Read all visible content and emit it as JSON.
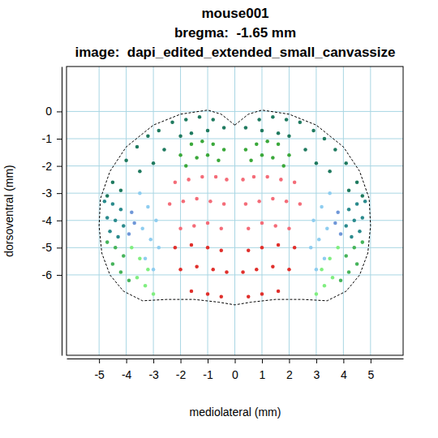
{
  "chart_data": {
    "type": "scatter",
    "title": [
      "mouse001",
      "bregma:  -1.65 mm",
      "image:  dapi_edited_extended_small_canvassize"
    ],
    "xlabel": "mediolateral (mm)",
    "ylabel": "dorsoventral (mm)",
    "xlim": [
      -6.2,
      6.2
    ],
    "ylim": [
      -8.95,
      1.65
    ],
    "xticks": [
      -5,
      -4,
      -3,
      -2,
      -1,
      0,
      1,
      2,
      3,
      4,
      5
    ],
    "yticks": [
      0,
      -1,
      -2,
      -3,
      -4,
      -5,
      -6
    ],
    "grid": true,
    "series": [
      {
        "type": "line",
        "color": "#000000",
        "line_style": "dashed",
        "x": [
          0,
          0.5,
          1.0,
          2.0,
          3.0,
          4.0,
          4.6,
          4.95,
          5.0,
          4.9,
          4.6,
          4.1,
          3.4,
          2.5,
          1.5,
          0.6,
          0,
          -0.6,
          -1.5,
          -2.5,
          -3.4,
          -4.1,
          -4.6,
          -4.9,
          -5.0,
          -4.95,
          -4.6,
          -4.0,
          -3.0,
          -2.0,
          -1.0,
          -0.5,
          0
        ],
        "values": [
          -0.5,
          -0.1,
          0.05,
          -0.1,
          -0.5,
          -1.3,
          -2.2,
          -3.2,
          -4.2,
          -5.2,
          -6.0,
          -6.6,
          -6.95,
          -6.9,
          -6.9,
          -7.0,
          -7.1,
          -7.0,
          -6.9,
          -6.9,
          -6.95,
          -6.6,
          -6.0,
          -5.2,
          -4.2,
          -3.2,
          -2.2,
          -1.3,
          -0.5,
          -0.1,
          0.05,
          -0.1,
          -0.5
        ]
      },
      {
        "type": "scatter",
        "color": "#1f7a5f",
        "marker": "circle",
        "x": [
          -4.5,
          -4.0,
          -3.6,
          -3.2,
          -2.8,
          -2.3,
          -1.8,
          -1.3,
          -0.8,
          -0.4,
          0.4,
          0.9,
          1.4,
          1.9,
          2.4,
          2.9,
          3.3,
          3.7,
          4.1,
          4.5,
          -4.2,
          -3.5,
          -2.6,
          -1.6,
          1.6,
          2.6,
          3.5,
          4.2,
          -3.0,
          3.0,
          -4.7,
          4.7,
          -2.0,
          2.0,
          -1.0,
          1.0
        ],
        "values": [
          -2.6,
          -1.8,
          -1.3,
          -0.9,
          -0.7,
          -0.4,
          -0.3,
          -0.2,
          -0.3,
          -0.6,
          -0.6,
          -0.3,
          -0.2,
          -0.3,
          -0.4,
          -0.7,
          -1.0,
          -1.4,
          -1.9,
          -2.6,
          -2.9,
          -2.2,
          -1.4,
          -0.8,
          -0.8,
          -1.4,
          -2.2,
          -2.9,
          -1.9,
          -1.9,
          -3.1,
          -3.1,
          -0.9,
          -0.9,
          -0.7,
          -0.7
        ]
      },
      {
        "type": "scatter",
        "color": "#2a8a8c",
        "marker": "circle",
        "x": [
          -4.8,
          -4.5,
          -4.2,
          -4.7,
          -4.4,
          -4.1,
          -4.6,
          -4.3,
          4.8,
          4.5,
          4.2,
          4.7,
          4.4,
          4.1,
          4.6,
          4.3
        ],
        "values": [
          -3.3,
          -3.4,
          -3.6,
          -3.9,
          -4.0,
          -4.2,
          -4.4,
          -4.6,
          -3.3,
          -3.4,
          -3.6,
          -3.9,
          -4.0,
          -4.2,
          -4.4,
          -4.6
        ]
      },
      {
        "type": "scatter",
        "color": "#46b45a",
        "marker": "circle",
        "x": [
          -4.7,
          -4.4,
          -4.1,
          -4.5,
          -4.2,
          -3.9,
          4.7,
          4.4,
          4.1,
          4.5,
          4.2,
          3.9
        ],
        "values": [
          -4.8,
          -5.0,
          -5.3,
          -5.6,
          -5.9,
          -6.2,
          -4.8,
          -5.0,
          -5.3,
          -5.6,
          -5.9,
          -6.2
        ]
      },
      {
        "type": "scatter",
        "color": "#80ee80",
        "marker": "circle",
        "x": [
          -3.8,
          -3.5,
          -3.2,
          -3.6,
          -3.3,
          -3.0,
          3.8,
          3.5,
          3.2,
          3.6,
          3.3,
          3.0
        ],
        "values": [
          -5.0,
          -5.4,
          -5.8,
          -6.1,
          -6.4,
          -6.7,
          -5.0,
          -5.4,
          -5.8,
          -6.1,
          -6.4,
          -6.7
        ]
      },
      {
        "type": "scatter",
        "color": "#8ecdf0",
        "marker": "circle",
        "x": [
          -3.5,
          -3.2,
          -2.9,
          -3.4,
          -3.1,
          -2.8,
          -3.3,
          -3.0,
          3.5,
          3.2,
          2.9,
          3.4,
          3.1,
          2.8,
          3.3,
          3.0
        ],
        "values": [
          -3.0,
          -3.5,
          -4.0,
          -4.3,
          -4.7,
          -5.0,
          -5.4,
          -5.8,
          -3.0,
          -3.5,
          -4.0,
          -4.3,
          -4.7,
          -5.0,
          -5.4,
          -5.8
        ]
      },
      {
        "type": "scatter",
        "color": "#6f97d8",
        "marker": "circle",
        "x": [
          -3.8,
          -3.7,
          -3.9,
          3.8,
          3.7,
          3.9
        ],
        "values": [
          -3.7,
          -4.1,
          -4.5,
          -3.7,
          -4.1,
          -4.5
        ]
      },
      {
        "type": "scatter",
        "color": "#3aa83a",
        "marker": "circle",
        "x": [
          -2.0,
          -1.6,
          -1.2,
          -0.8,
          -0.4,
          -1.8,
          -1.4,
          -1.0,
          -0.6,
          0.4,
          0.8,
          1.2,
          1.6,
          2.0,
          0.6,
          1.0,
          1.4,
          1.8
        ],
        "values": [
          -1.6,
          -1.2,
          -1.1,
          -1.2,
          -1.4,
          -2.0,
          -1.7,
          -1.6,
          -1.8,
          -1.4,
          -1.2,
          -1.1,
          -1.2,
          -1.6,
          -1.8,
          -1.6,
          -1.7,
          -2.0
        ]
      },
      {
        "type": "scatter",
        "color": "#f46c78",
        "marker": "circle",
        "x": [
          -2.2,
          -1.7,
          -1.2,
          -0.7,
          -0.3,
          0.3,
          0.7,
          1.2,
          1.7,
          2.2,
          -2.4,
          -1.9,
          -1.4,
          -0.9,
          -0.4,
          0.4,
          0.9,
          1.4,
          1.9,
          2.4,
          -2.0,
          -1.5,
          -1.0,
          -0.5,
          0.5,
          1.0,
          1.5,
          2.0
        ],
        "values": [
          -2.6,
          -2.5,
          -2.4,
          -2.4,
          -2.5,
          -2.5,
          -2.4,
          -2.4,
          -2.5,
          -2.6,
          -3.4,
          -3.3,
          -3.2,
          -3.3,
          -3.4,
          -3.4,
          -3.3,
          -3.2,
          -3.3,
          -3.4,
          -4.3,
          -4.2,
          -4.1,
          -4.3,
          -4.3,
          -4.1,
          -4.2,
          -4.3
        ]
      },
      {
        "type": "scatter",
        "color": "#e0302c",
        "marker": "circle",
        "x": [
          -2.2,
          -1.6,
          -1.0,
          -0.5,
          0.5,
          1.0,
          1.6,
          2.2,
          -2.0,
          -1.4,
          -0.8,
          -0.3,
          0.3,
          0.8,
          1.4,
          2.0,
          -1.6,
          -1.0,
          -0.5,
          0.5,
          1.0,
          1.6
        ],
        "values": [
          -5.0,
          -4.9,
          -5.0,
          -5.1,
          -5.1,
          -5.0,
          -4.9,
          -5.0,
          -5.8,
          -5.7,
          -5.8,
          -5.9,
          -5.9,
          -5.8,
          -5.7,
          -5.8,
          -6.6,
          -6.7,
          -6.8,
          -6.8,
          -6.7,
          -6.6
        ]
      }
    ]
  }
}
